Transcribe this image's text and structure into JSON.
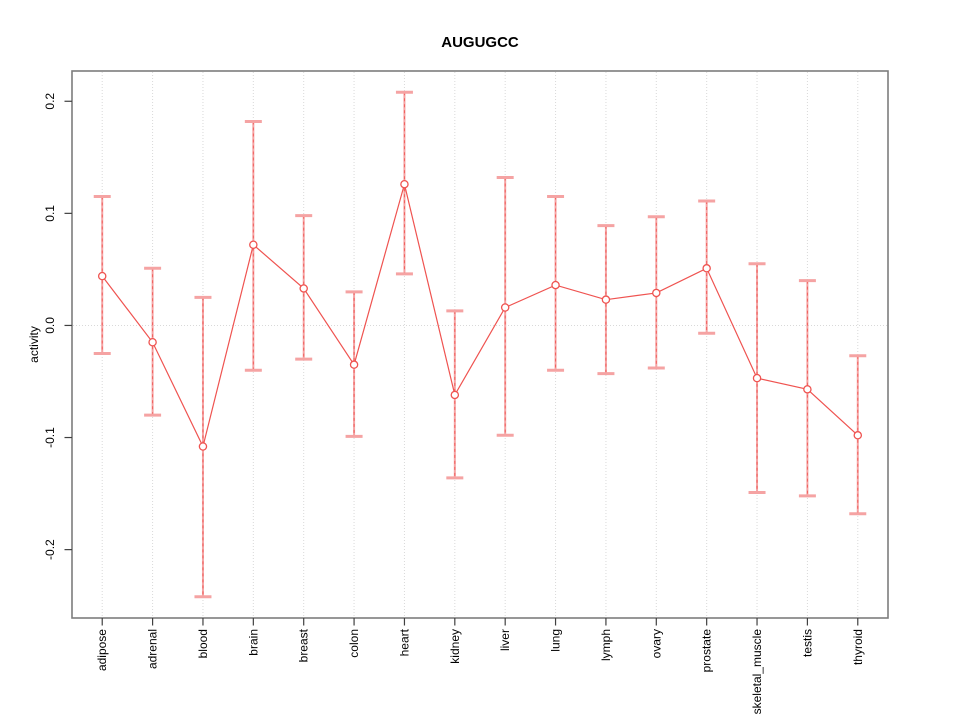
{
  "chart_data": {
    "type": "line",
    "title": "AUGUGCC",
    "xlabel": "",
    "ylabel": "activity",
    "categories": [
      "adipose",
      "adrenal",
      "blood",
      "brain",
      "breast",
      "colon",
      "heart",
      "kidney",
      "liver",
      "lung",
      "lymph",
      "ovary",
      "prostate",
      "skeletal_muscle",
      "testis",
      "thyroid"
    ],
    "series": [
      {
        "name": "activity",
        "values": [
          0.044,
          -0.015,
          -0.108,
          0.072,
          0.033,
          -0.035,
          0.126,
          -0.062,
          0.016,
          0.036,
          0.023,
          0.029,
          0.051,
          -0.047,
          -0.057,
          -0.098
        ],
        "ci_high": [
          0.115,
          0.051,
          0.025,
          0.182,
          0.098,
          0.03,
          0.208,
          0.013,
          0.132,
          0.115,
          0.089,
          0.097,
          0.111,
          0.055,
          0.04,
          -0.027
        ],
        "ci_low": [
          -0.025,
          -0.08,
          -0.242,
          -0.04,
          -0.03,
          -0.099,
          0.046,
          -0.136,
          -0.098,
          -0.04,
          -0.043,
          -0.038,
          -0.007,
          -0.149,
          -0.152,
          -0.168
        ]
      }
    ],
    "yticks": [
      -0.2,
      -0.1,
      0.0,
      0.1,
      0.2
    ],
    "ylim": [
      -0.261,
      0.227
    ],
    "grid": "dotted vertical gridline at each category and dotted horizontal line at y=0",
    "legend": "none",
    "point_style": "open-circle",
    "errorbar_style": "dashed stem with flat caps",
    "colors": {
      "series": "#ef5350",
      "errorbar": "#f5a3a3",
      "point_fill": "#ffffff",
      "grid": "#d9d9d9",
      "box": "#7d7d7d",
      "tick": "#404040",
      "text": "#000000"
    }
  }
}
